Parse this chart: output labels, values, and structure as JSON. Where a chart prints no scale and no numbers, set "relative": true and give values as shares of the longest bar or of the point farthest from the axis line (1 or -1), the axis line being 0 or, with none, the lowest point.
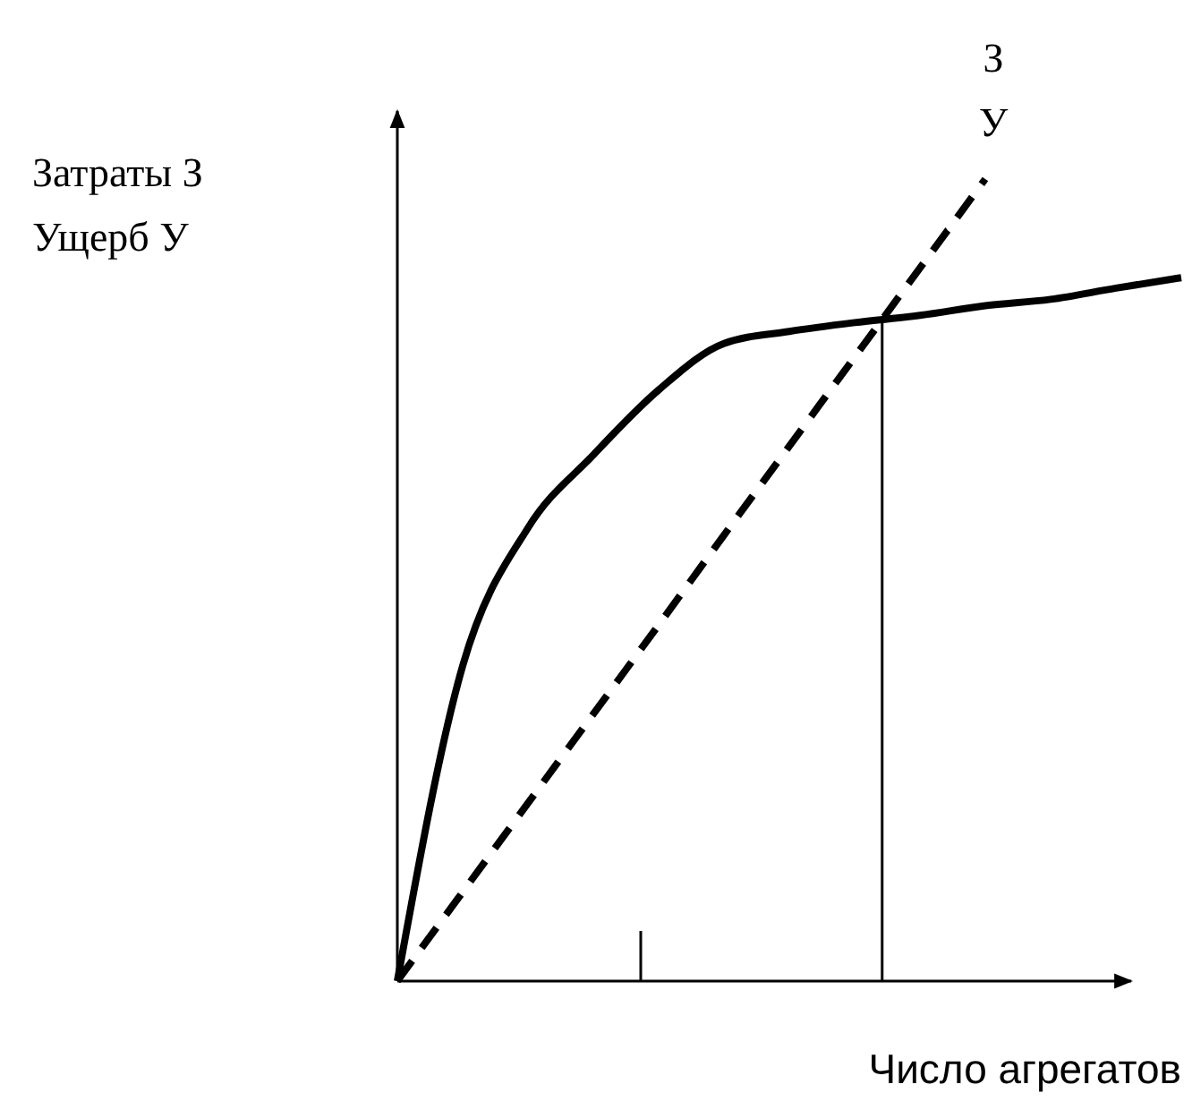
{
  "chart_data": {
    "type": "line",
    "relative": true,
    "xlabel": "Число агрегатов",
    "ylabel": "Затраты З\nУщерб У",
    "categories": [
      null,
      null,
      null,
      null,
      null,
      null,
      null,
      null,
      null,
      null,
      null,
      null,
      null
    ],
    "series": [
      {
        "color": "#000000",
        "line_style": "solid",
        "values": [
          0,
          0.393,
          0.565,
          0.656,
          0.737,
          0.795,
          0.81,
          0.821,
          0.83,
          0.842,
          0.85,
          0.864,
          0.877
        ]
      },
      {
        "color": "#000000",
        "line_style": "dashed",
        "values": [
          0,
          0.111,
          0.222,
          0.333,
          0.444,
          0.556,
          0.667,
          0.778,
          0.889,
          1,
          null,
          null,
          null
        ]
      }
    ],
    "annotations": [
      "З",
      "У"
    ],
    "marker": "none"
  }
}
